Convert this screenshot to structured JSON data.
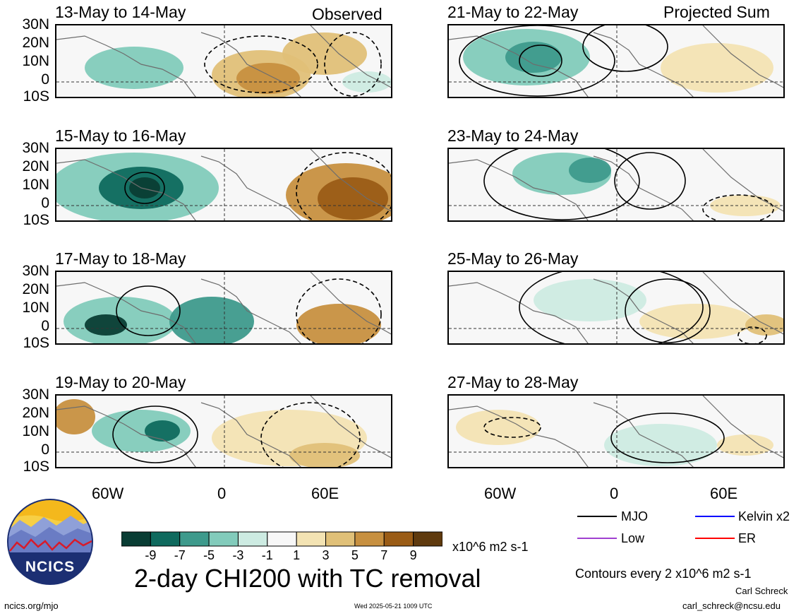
{
  "header": {
    "left_label": "Observed",
    "right_label": "Projected Sum"
  },
  "latitudes": [
    "30N",
    "20N",
    "10N",
    "0",
    "10S"
  ],
  "longitudes": [
    "60W",
    "0",
    "60E"
  ],
  "panels": [
    {
      "title": "13-May to 14-May",
      "column": "observed"
    },
    {
      "title": "15-May to 16-May",
      "column": "observed"
    },
    {
      "title": "17-May to 18-May",
      "column": "observed"
    },
    {
      "title": "19-May to 20-May",
      "column": "observed"
    },
    {
      "title": "21-May to 22-May",
      "column": "projected"
    },
    {
      "title": "23-May to 24-May",
      "column": "projected"
    },
    {
      "title": "25-May to 26-May",
      "column": "projected"
    },
    {
      "title": "27-May to 28-May",
      "column": "projected"
    }
  ],
  "colorbar": {
    "labels": [
      "-9",
      "-7",
      "-5",
      "-3",
      "-1",
      "1",
      "3",
      "5",
      "7",
      "9"
    ],
    "colors": [
      "#093d34",
      "#0f6a5e",
      "#3e9a8c",
      "#82cbbb",
      "#cdebe2",
      "#f7f7f7",
      "#f3e3b3",
      "#e0c078",
      "#c79040",
      "#9a5c16",
      "#5f3a0e"
    ],
    "units": "x10^6 m2 s-1"
  },
  "legend": {
    "items": [
      {
        "label": "MJO",
        "color": "#000000"
      },
      {
        "label": "Kelvin x2",
        "color": "#0000ff"
      },
      {
        "label": "Low",
        "color": "#a040d0"
      },
      {
        "label": "ER",
        "color": "#ff0000"
      }
    ],
    "contour_note": "Contours every 2 x10^6 m2 s-1"
  },
  "footer": {
    "title": "2-day CHI200 with TC removal",
    "logo_text": "NCICS",
    "url": "ncics.org/mjo",
    "timestamp": "Wed 2025-05-21 1009 UTC",
    "author": "Carl Schreck",
    "email": "carl_schreck@ncsu.edu"
  }
}
